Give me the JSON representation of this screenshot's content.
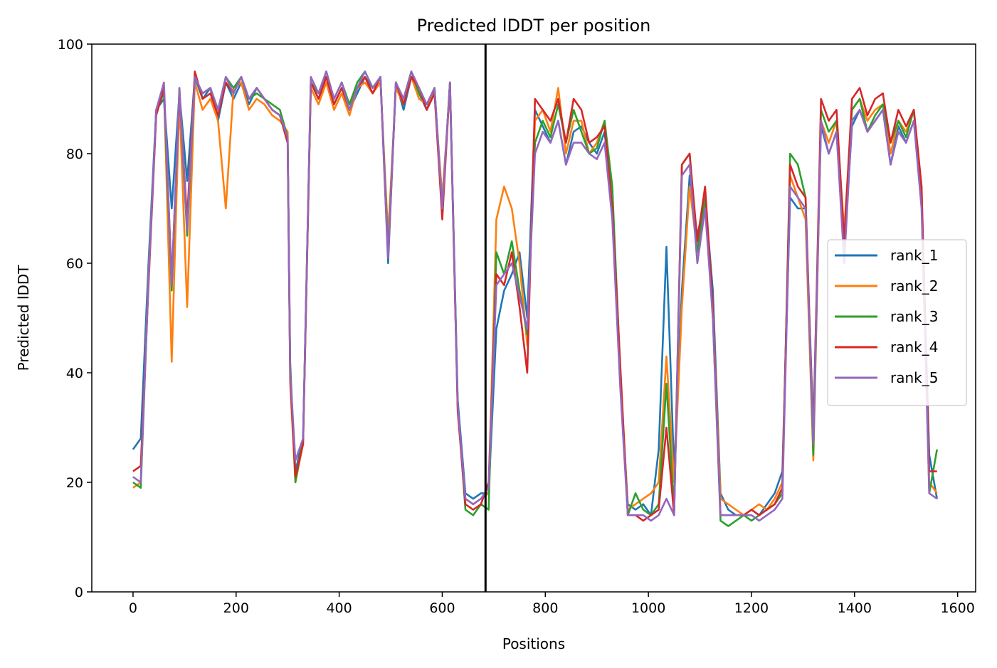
{
  "chart_data": {
    "type": "line",
    "title": "Predicted lDDT per position",
    "xlabel": "Positions",
    "ylabel": "Predicted lDDT",
    "xlim": [
      -80,
      1635
    ],
    "ylim": [
      0,
      100
    ],
    "xticks": [
      0,
      200,
      400,
      600,
      800,
      1000,
      1200,
      1400,
      1600
    ],
    "yticks": [
      0,
      20,
      40,
      60,
      80,
      100
    ],
    "vline_x": 684,
    "grid": false,
    "legend_position": "center-right",
    "x": [
      0,
      15,
      30,
      45,
      60,
      75,
      90,
      105,
      120,
      135,
      150,
      165,
      180,
      195,
      210,
      225,
      240,
      255,
      270,
      285,
      300,
      305,
      315,
      330,
      345,
      360,
      375,
      390,
      405,
      420,
      435,
      450,
      465,
      480,
      495,
      510,
      525,
      540,
      555,
      570,
      585,
      600,
      615,
      630,
      645,
      660,
      675,
      690,
      705,
      720,
      735,
      750,
      765,
      780,
      795,
      810,
      825,
      840,
      855,
      870,
      885,
      900,
      915,
      930,
      945,
      960,
      975,
      990,
      1005,
      1020,
      1035,
      1050,
      1065,
      1080,
      1095,
      1110,
      1125,
      1140,
      1155,
      1170,
      1185,
      1200,
      1215,
      1230,
      1245,
      1260,
      1275,
      1290,
      1305,
      1320,
      1335,
      1350,
      1365,
      1380,
      1395,
      1410,
      1425,
      1440,
      1455,
      1470,
      1485,
      1500,
      1515,
      1530,
      1545,
      1560
    ],
    "series": [
      {
        "name": "rank_1",
        "color": "#1f77b4",
        "values": [
          26,
          28,
          60,
          88,
          90,
          70,
          91,
          75,
          94,
          90,
          92,
          86,
          93,
          90,
          93,
          89,
          92,
          90,
          88,
          87,
          82,
          40,
          22,
          28,
          93,
          90,
          94,
          89,
          92,
          88,
          91,
          94,
          92,
          94,
          60,
          93,
          88,
          94,
          91,
          88,
          92,
          70,
          93,
          35,
          18,
          17,
          18,
          18,
          48,
          55,
          58,
          62,
          50,
          88,
          85,
          82,
          86,
          78,
          84,
          85,
          82,
          80,
          84,
          70,
          40,
          16,
          15,
          16,
          14,
          26,
          63,
          22,
          55,
          76,
          65,
          72,
          55,
          18,
          15,
          14,
          14,
          15,
          14,
          16,
          18,
          22,
          72,
          70,
          70,
          30,
          85,
          80,
          84,
          62,
          85,
          88,
          84,
          86,
          88,
          78,
          85,
          82,
          86,
          72,
          25,
          17
        ]
      },
      {
        "name": "rank_2",
        "color": "#ff7f0e",
        "values": [
          19,
          20,
          58,
          87,
          92,
          42,
          90,
          52,
          93,
          88,
          90,
          86,
          70,
          92,
          93,
          88,
          90,
          89,
          87,
          86,
          84,
          38,
          20,
          27,
          92,
          89,
          93,
          88,
          91,
          87,
          92,
          93,
          91,
          93,
          65,
          92,
          89,
          94,
          90,
          89,
          91,
          72,
          92,
          33,
          17,
          16,
          17,
          18,
          68,
          74,
          70,
          60,
          45,
          86,
          88,
          84,
          92,
          80,
          86,
          86,
          80,
          82,
          86,
          72,
          42,
          15,
          16,
          17,
          18,
          20,
          43,
          20,
          52,
          74,
          62,
          70,
          52,
          17,
          16,
          15,
          14,
          15,
          16,
          15,
          17,
          20,
          76,
          72,
          68,
          24,
          86,
          82,
          86,
          66,
          88,
          90,
          86,
          88,
          89,
          80,
          86,
          84,
          88,
          74,
          20,
          18
        ]
      },
      {
        "name": "rank_3",
        "color": "#2ca02c",
        "values": [
          20,
          19,
          57,
          88,
          91,
          55,
          92,
          65,
          94,
          91,
          92,
          88,
          94,
          92,
          94,
          90,
          91,
          90,
          89,
          88,
          83,
          42,
          20,
          28,
          93,
          91,
          95,
          90,
          93,
          89,
          93,
          95,
          92,
          94,
          62,
          93,
          90,
          95,
          91,
          89,
          92,
          70,
          93,
          34,
          15,
          14,
          16,
          15,
          62,
          58,
          64,
          55,
          47,
          82,
          86,
          83,
          89,
          82,
          88,
          84,
          80,
          81,
          86,
          74,
          41,
          14,
          18,
          15,
          14,
          16,
          38,
          15,
          78,
          80,
          62,
          72,
          50,
          13,
          12,
          13,
          14,
          13,
          14,
          15,
          16,
          18,
          80,
          78,
          72,
          25,
          88,
          84,
          86,
          62,
          88,
          90,
          84,
          87,
          89,
          82,
          86,
          83,
          88,
          73,
          18,
          26
        ]
      },
      {
        "name": "rank_4",
        "color": "#d62728",
        "values": [
          22,
          23,
          56,
          87,
          92,
          57,
          91,
          68,
          95,
          90,
          91,
          87,
          93,
          91,
          94,
          90,
          92,
          90,
          88,
          87,
          82,
          39,
          21,
          27,
          93,
          90,
          94,
          89,
          92,
          88,
          92,
          94,
          91,
          94,
          61,
          93,
          89,
          94,
          92,
          88,
          91,
          68,
          93,
          33,
          16,
          15,
          16,
          20,
          58,
          56,
          62,
          52,
          40,
          90,
          88,
          86,
          90,
          82,
          90,
          88,
          82,
          83,
          85,
          70,
          42,
          14,
          14,
          13,
          14,
          15,
          30,
          14,
          78,
          80,
          64,
          74,
          52,
          14,
          14,
          14,
          14,
          15,
          14,
          15,
          16,
          19,
          78,
          74,
          72,
          28,
          90,
          86,
          88,
          64,
          90,
          92,
          87,
          90,
          91,
          82,
          88,
          85,
          88,
          74,
          22,
          22
        ]
      },
      {
        "name": "rank_5",
        "color": "#9467bd",
        "values": [
          21,
          20,
          57,
          88,
          93,
          56,
          92,
          66,
          94,
          91,
          92,
          88,
          94,
          91,
          94,
          90,
          92,
          90,
          88,
          87,
          83,
          40,
          24,
          28,
          94,
          91,
          95,
          90,
          93,
          88,
          92,
          95,
          92,
          94,
          61,
          93,
          90,
          95,
          92,
          89,
          92,
          70,
          93,
          34,
          17,
          16,
          17,
          19,
          56,
          58,
          60,
          54,
          48,
          80,
          84,
          82,
          86,
          78,
          82,
          82,
          80,
          79,
          82,
          68,
          38,
          14,
          14,
          14,
          13,
          14,
          17,
          14,
          76,
          78,
          60,
          70,
          50,
          14,
          14,
          14,
          14,
          14,
          13,
          14,
          15,
          17,
          74,
          72,
          70,
          27,
          86,
          80,
          84,
          60,
          86,
          88,
          84,
          86,
          88,
          78,
          84,
          82,
          86,
          70,
          18,
          17
        ]
      }
    ]
  }
}
